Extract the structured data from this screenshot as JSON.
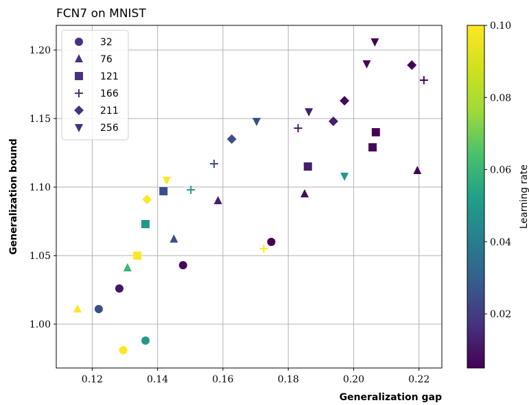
{
  "chart_data": {
    "type": "scatter",
    "title": "FCN7 on MNIST",
    "xlabel": "Generalization gap",
    "ylabel": "Generalization bound",
    "xlim": [
      0.109,
      0.227
    ],
    "ylim": [
      0.968,
      1.218
    ],
    "xticks": [
      "0.12",
      "0.14",
      "0.16",
      "0.18",
      "0.20",
      "0.22"
    ],
    "yticks": [
      "1.00",
      "1.05",
      "1.10",
      "1.15",
      "1.20"
    ],
    "grid": true,
    "legend_position": "top-left",
    "colorbar": {
      "label": "Learning rate",
      "colormap": "viridis",
      "range": [
        0.005,
        0.1
      ],
      "ticks": [
        "0.02",
        "0.04",
        "0.06",
        "0.08",
        "0.10"
      ]
    },
    "series": [
      {
        "name": "32",
        "marker": "circle",
        "points": [
          {
            "x": 0.1295,
            "y": 0.981,
            "lr": 0.1
          },
          {
            "x": 0.1363,
            "y": 0.988,
            "lr": 0.05
          },
          {
            "x": 0.122,
            "y": 1.011,
            "lr": 0.025
          },
          {
            "x": 0.1283,
            "y": 1.026,
            "lr": 0.01
          },
          {
            "x": 0.1478,
            "y": 1.043,
            "lr": 0.007
          },
          {
            "x": 0.1748,
            "y": 1.06,
            "lr": 0.005
          }
        ]
      },
      {
        "name": "76",
        "marker": "triangle-up",
        "points": [
          {
            "x": 0.1155,
            "y": 1.011,
            "lr": 0.1
          },
          {
            "x": 0.1308,
            "y": 1.041,
            "lr": 0.06
          },
          {
            "x": 0.145,
            "y": 1.062,
            "lr": 0.025
          },
          {
            "x": 0.1585,
            "y": 1.09,
            "lr": 0.012
          },
          {
            "x": 0.185,
            "y": 1.095,
            "lr": 0.007
          },
          {
            "x": 0.2195,
            "y": 1.112,
            "lr": 0.005
          }
        ]
      },
      {
        "name": "121",
        "marker": "square",
        "points": [
          {
            "x": 0.1338,
            "y": 1.05,
            "lr": 0.1
          },
          {
            "x": 0.1363,
            "y": 1.073,
            "lr": 0.05
          },
          {
            "x": 0.1418,
            "y": 1.097,
            "lr": 0.025
          },
          {
            "x": 0.186,
            "y": 1.115,
            "lr": 0.012
          },
          {
            "x": 0.2058,
            "y": 1.129,
            "lr": 0.007
          },
          {
            "x": 0.2068,
            "y": 1.14,
            "lr": 0.005
          }
        ]
      },
      {
        "name": "166",
        "marker": "plus",
        "points": [
          {
            "x": 0.1725,
            "y": 1.055,
            "lr": 0.1
          },
          {
            "x": 0.1502,
            "y": 1.098,
            "lr": 0.05
          },
          {
            "x": 0.1573,
            "y": 1.117,
            "lr": 0.025
          },
          {
            "x": 0.183,
            "y": 1.143,
            "lr": 0.012
          },
          {
            "x": 0.2215,
            "y": 1.178,
            "lr": 0.005
          }
        ]
      },
      {
        "name": "211",
        "marker": "diamond",
        "points": [
          {
            "x": 0.1368,
            "y": 1.091,
            "lr": 0.1
          },
          {
            "x": 0.1627,
            "y": 1.135,
            "lr": 0.025
          },
          {
            "x": 0.1938,
            "y": 1.148,
            "lr": 0.012
          },
          {
            "x": 0.1972,
            "y": 1.163,
            "lr": 0.007
          },
          {
            "x": 0.2178,
            "y": 1.189,
            "lr": 0.005
          }
        ]
      },
      {
        "name": "256",
        "marker": "triangle-down",
        "points": [
          {
            "x": 0.1428,
            "y": 1.105,
            "lr": 0.1
          },
          {
            "x": 0.1972,
            "y": 1.108,
            "lr": 0.05
          },
          {
            "x": 0.1703,
            "y": 1.148,
            "lr": 0.025
          },
          {
            "x": 0.1863,
            "y": 1.155,
            "lr": 0.012
          },
          {
            "x": 0.204,
            "y": 1.19,
            "lr": 0.007
          },
          {
            "x": 0.2065,
            "y": 1.206,
            "lr": 0.005
          }
        ]
      }
    ]
  }
}
